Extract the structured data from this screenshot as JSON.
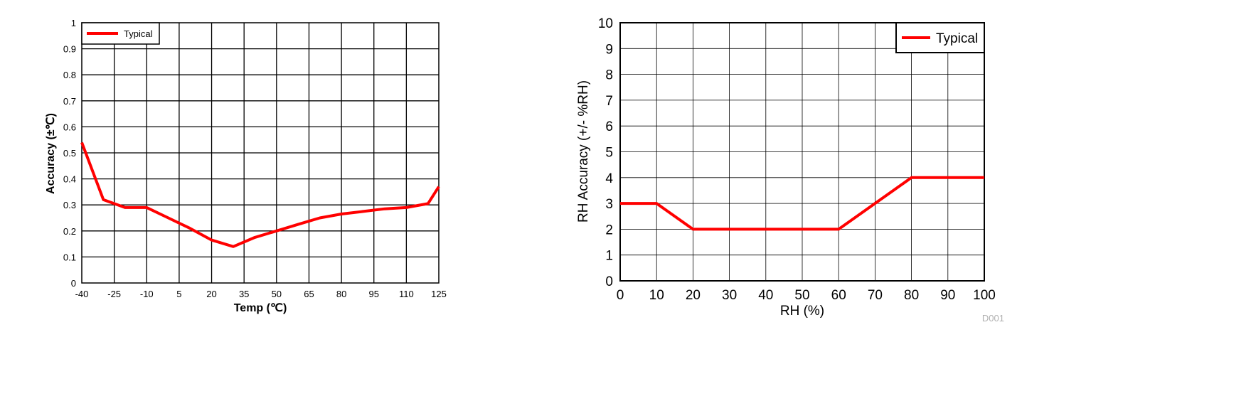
{
  "chart_data": [
    {
      "type": "line",
      "xlabel": "Temp (℃)",
      "ylabel": "Accuracy (±℃)",
      "xlim": [
        -40,
        125
      ],
      "ylim": [
        0,
        1
      ],
      "x_ticks": [
        "-40",
        "-25",
        "-10",
        "5",
        "20",
        "35",
        "50",
        "65",
        "80",
        "95",
        "110",
        "125"
      ],
      "y_ticks": [
        "0",
        "0.1",
        "0.2",
        "0.3",
        "0.4",
        "0.5",
        "0.6",
        "0.7",
        "0.8",
        "0.9",
        "1"
      ],
      "grid": true,
      "legend_position": "top-left",
      "series": [
        {
          "name": "Typical",
          "color": "#ff0000",
          "x": [
            -40,
            -30,
            -20,
            -10,
            0,
            10,
            20,
            30,
            40,
            50,
            60,
            70,
            80,
            90,
            100,
            110,
            120,
            125
          ],
          "y": [
            0.54,
            0.32,
            0.29,
            0.29,
            0.25,
            0.21,
            0.165,
            0.14,
            0.175,
            0.2,
            0.225,
            0.25,
            0.265,
            0.275,
            0.285,
            0.29,
            0.305,
            0.37
          ]
        }
      ]
    },
    {
      "type": "line",
      "xlabel": "RH (%)",
      "ylabel": "RH Accuracy (+/- %RH)",
      "xlim": [
        0,
        100
      ],
      "ylim": [
        0,
        10
      ],
      "x_ticks": [
        "0",
        "10",
        "20",
        "30",
        "40",
        "50",
        "60",
        "70",
        "80",
        "90",
        "100"
      ],
      "y_ticks": [
        "0",
        "1",
        "2",
        "3",
        "4",
        "5",
        "6",
        "7",
        "8",
        "9",
        "10"
      ],
      "grid": true,
      "legend_position": "top-right",
      "annotation": "D001",
      "series": [
        {
          "name": "Typical",
          "color": "#ff0000",
          "x": [
            0,
            10,
            20,
            60,
            80,
            100
          ],
          "y": [
            3,
            3,
            2,
            2,
            4,
            4
          ]
        }
      ]
    }
  ]
}
